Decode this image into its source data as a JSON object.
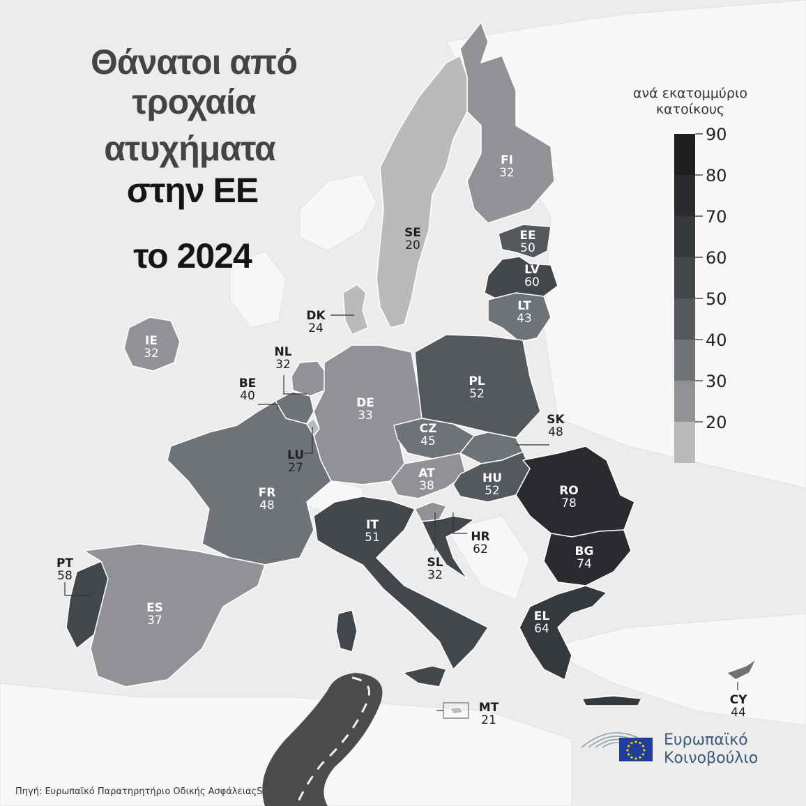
{
  "title": {
    "line1": "Θάνατοι από",
    "line2": "τροχαία",
    "line3": "ατυχήματα",
    "line4": "στην ΕΕ",
    "line5": "το 2024"
  },
  "legend": {
    "title_line1": "ανά εκατομμύριο",
    "title_line2": "κατοίκους",
    "ticks": [
      "90",
      "80",
      "70",
      "60",
      "50",
      "40",
      "30",
      "20"
    ],
    "colors": [
      "#1e1f21",
      "#292b2e",
      "#35383c",
      "#43464b",
      "#55585d",
      "#6f7276",
      "#909295",
      "#b9babc"
    ]
  },
  "countries": [
    {
      "code": "FI",
      "value": 32
    },
    {
      "code": "SE",
      "value": 20
    },
    {
      "code": "EE",
      "value": 50
    },
    {
      "code": "LV",
      "value": 60
    },
    {
      "code": "LT",
      "value": 43
    },
    {
      "code": "DK",
      "value": 24
    },
    {
      "code": "IE",
      "value": 32
    },
    {
      "code": "NL",
      "value": 32
    },
    {
      "code": "BE",
      "value": 40
    },
    {
      "code": "LU",
      "value": 27
    },
    {
      "code": "DE",
      "value": 33
    },
    {
      "code": "PL",
      "value": 52
    },
    {
      "code": "CZ",
      "value": 45
    },
    {
      "code": "SK",
      "value": 48
    },
    {
      "code": "AT",
      "value": 38
    },
    {
      "code": "HU",
      "value": 52
    },
    {
      "code": "RO",
      "value": 78
    },
    {
      "code": "FR",
      "value": 48
    },
    {
      "code": "IT",
      "value": 51
    },
    {
      "code": "SL",
      "value": 32
    },
    {
      "code": "HR",
      "value": 62
    },
    {
      "code": "BG",
      "value": 74
    },
    {
      "code": "PT",
      "value": 58
    },
    {
      "code": "ES",
      "value": 37
    },
    {
      "code": "EL",
      "value": 64
    },
    {
      "code": "MT",
      "value": 21
    },
    {
      "code": "CY",
      "value": 44
    }
  ],
  "logo": {
    "line1": "Ευρωπαϊκό",
    "line2": "Κοινοβούλιο"
  },
  "source": "Πηγή: Ευρωπαϊκό Παρατηρητήριο Οδικής ΑσφάλειαςS"
}
